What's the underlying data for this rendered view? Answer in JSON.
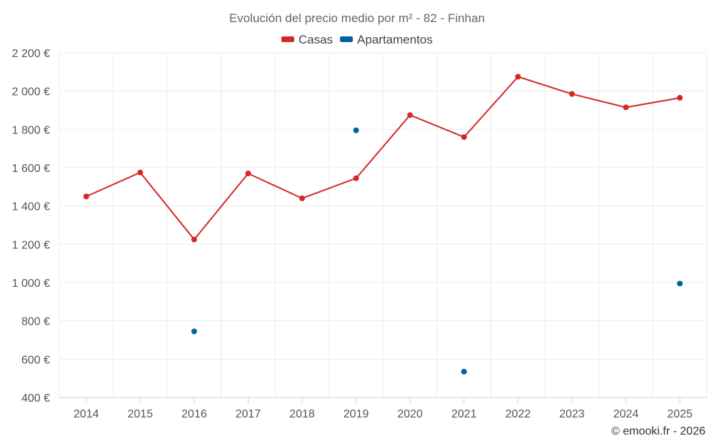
{
  "chart_data": {
    "type": "line",
    "title": "Evolución del precio medio por m² - 82 - Finhan",
    "categories": [
      "2014",
      "2015",
      "2016",
      "2017",
      "2018",
      "2019",
      "2020",
      "2021",
      "2022",
      "2023",
      "2024",
      "2025"
    ],
    "ylim": [
      400,
      2200
    ],
    "ytick_values": [
      400,
      600,
      800,
      1000,
      1200,
      1400,
      1600,
      1800,
      2000,
      2200
    ],
    "ytick_labels": [
      "400 €",
      "600 €",
      "800 €",
      "1 000 €",
      "1 200 €",
      "1 400 €",
      "1 600 €",
      "1 800 €",
      "2 000 €",
      "2 200 €"
    ],
    "grid": true,
    "legend_position": "top-center",
    "series": [
      {
        "name": "Casas",
        "color": "#d62728",
        "style": "line-markers",
        "values": [
          1450,
          1575,
          1225,
          1570,
          1440,
          1545,
          1875,
          1760,
          2075,
          1985,
          1915,
          1965
        ]
      },
      {
        "name": "Apartamentos",
        "color": "#00639e",
        "style": "markers",
        "values": [
          null,
          null,
          745,
          null,
          null,
          1795,
          null,
          535,
          null,
          null,
          null,
          995
        ]
      }
    ]
  },
  "credit": "© emooki.fr - 2026"
}
